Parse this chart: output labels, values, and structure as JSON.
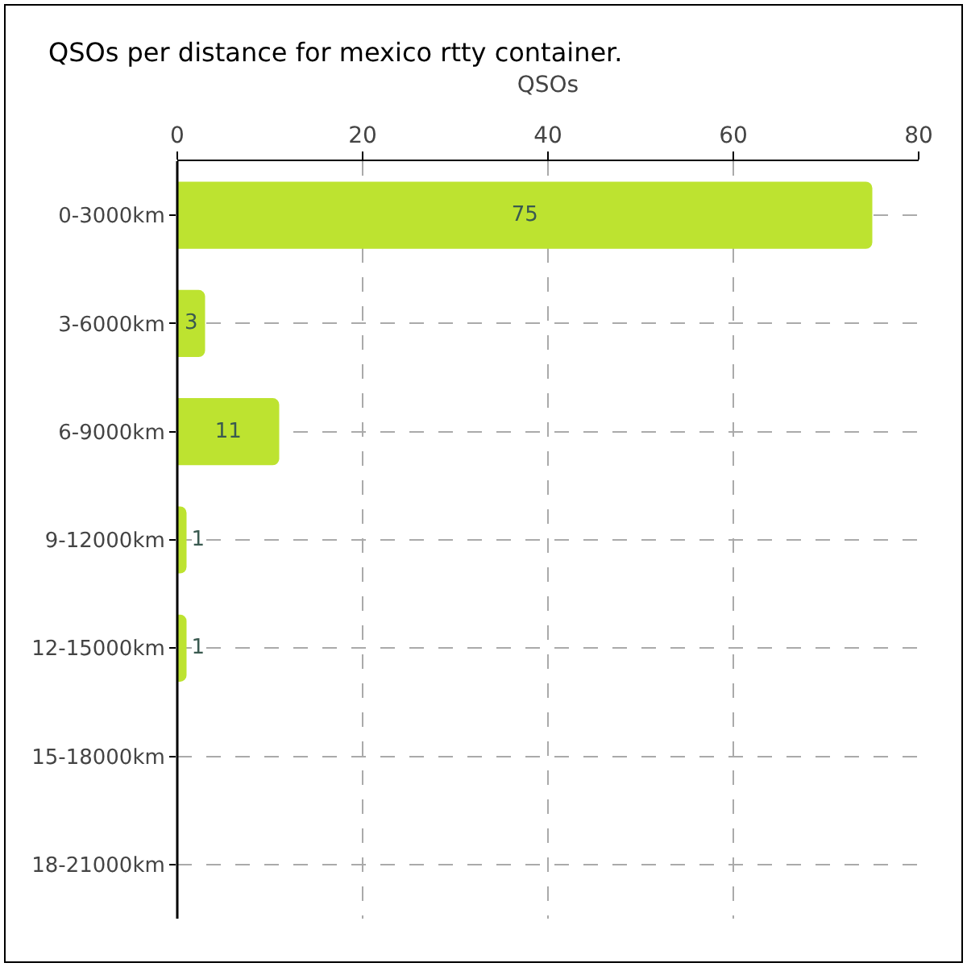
{
  "chart_data": {
    "type": "bar",
    "orientation": "horizontal",
    "title": "QSOs per distance for mexico rtty container.",
    "xlabel": "QSOs",
    "categories": [
      "0-3000km",
      "3-6000km",
      "6-9000km",
      "9-12000km",
      "12-15000km",
      "15-18000km",
      "18-21000km"
    ],
    "values": [
      75,
      3,
      11,
      1,
      1,
      0,
      0
    ],
    "value_labels": [
      "75",
      "3",
      "11",
      "1",
      "1",
      null,
      null
    ],
    "color": "#bde330",
    "xlim": [
      0,
      80
    ],
    "xticks": [
      0,
      20,
      40,
      60,
      80
    ],
    "grid": true
  }
}
